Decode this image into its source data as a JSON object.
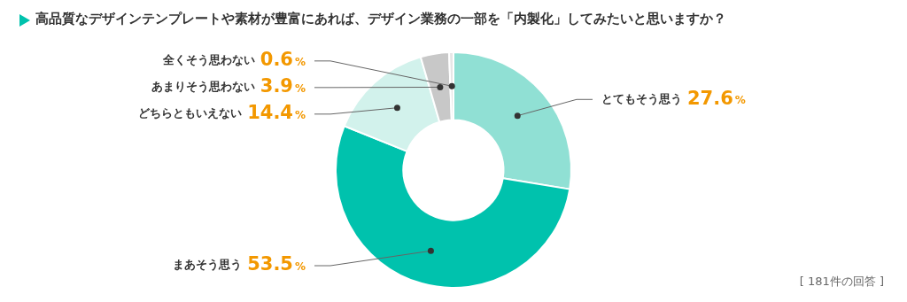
{
  "chart_data": {
    "type": "donut",
    "title": "高品質なデザインテンプレートや素材が豊富にあれば、デザイン業務の一部を「内製化」してみたいと思いますか？",
    "categories": [
      "とてもそう思う",
      "まあそう思う",
      "どちらともいえない",
      "あまりそう思わない",
      "全くそう思わない"
    ],
    "values": [
      27.6,
      53.5,
      14.4,
      3.9,
      0.6
    ],
    "value_labels": [
      "27.6%",
      "53.5%",
      "14.4%",
      "3.9%",
      "0.6%"
    ],
    "colors": [
      "#90e0d4",
      "#00c2ad",
      "#d2f2ec",
      "#c8c8c8",
      "#e6e6e6"
    ],
    "legend": false,
    "annotations": [
      "[ 181件の回答 ]"
    ]
  }
}
